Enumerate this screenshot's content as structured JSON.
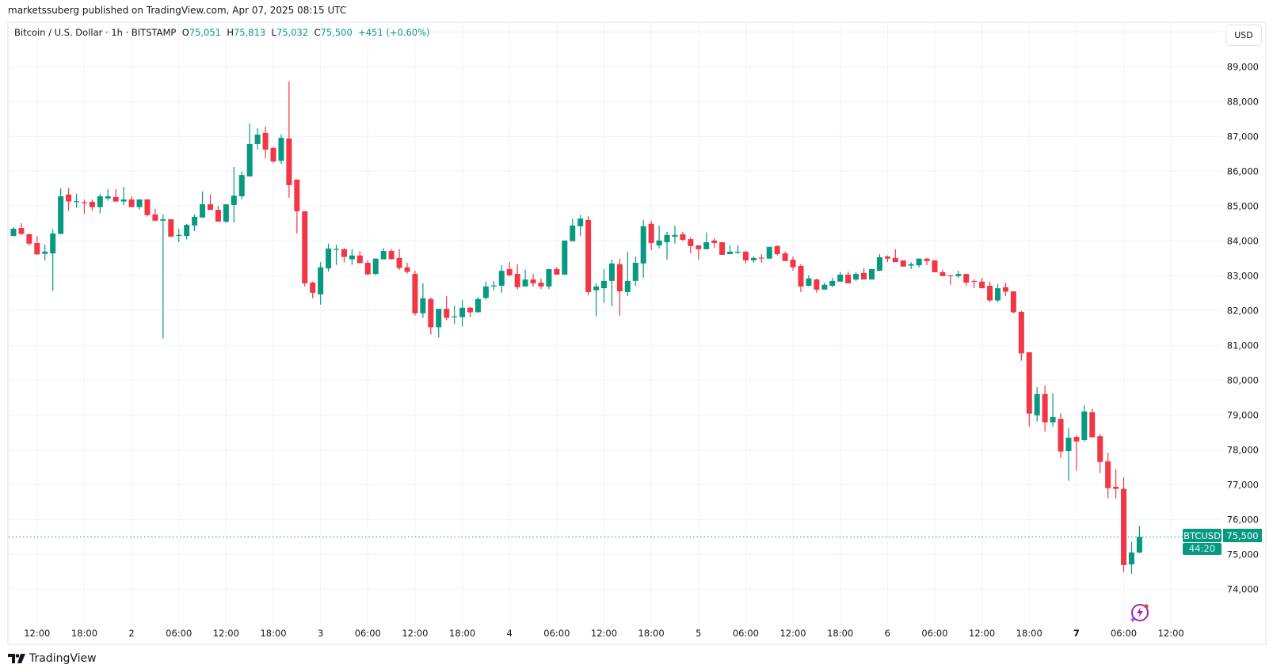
{
  "header": {
    "published": "marketssuberg published on TradingView.com, Apr 07, 2025 08:15 UTC"
  },
  "legend": {
    "symbol": "Bitcoin / U.S. Dollar · 1h · BITSTAMP",
    "o_label": "O",
    "o_value": "75,051",
    "h_label": "H",
    "h_value": "75,813",
    "l_label": "L",
    "l_value": "75,032",
    "c_label": "C",
    "c_value": "75,500",
    "change": "+451 (+0.60%)"
  },
  "currency_button": "USD",
  "price_tag": {
    "symbol": "BTCUSD",
    "price": "75,500",
    "countdown": "44:20"
  },
  "branding": {
    "logo_text": "TradingView"
  },
  "colors": {
    "up": "#089981",
    "down": "#f23645",
    "grid": "#f0f3fa",
    "last_price_line": "#089981"
  },
  "chart_data": {
    "type": "candlestick",
    "title": "Bitcoin / U.S. Dollar · 1h · BITSTAMP",
    "interval": "1h",
    "start": "2025-04-01 09:00",
    "ylim": [
      73500,
      90000
    ],
    "last_price": 75500,
    "grid": true,
    "y_ticks": [
      {
        "value": 74000,
        "label": "74,000"
      },
      {
        "value": 75000,
        "label": "75,000"
      },
      {
        "value": 76000,
        "label": "76,000"
      },
      {
        "value": 77000,
        "label": "77,000"
      },
      {
        "value": 78000,
        "label": "78,000"
      },
      {
        "value": 79000,
        "label": "79,000"
      },
      {
        "value": 80000,
        "label": "80,000"
      },
      {
        "value": 81000,
        "label": "81,000"
      },
      {
        "value": 82000,
        "label": "82,000"
      },
      {
        "value": 83000,
        "label": "83,000"
      },
      {
        "value": 84000,
        "label": "84,000"
      },
      {
        "value": 85000,
        "label": "85,000"
      },
      {
        "value": 86000,
        "label": "86,000"
      },
      {
        "value": 87000,
        "label": "87,000"
      },
      {
        "value": 88000,
        "label": "88,000"
      },
      {
        "value": 89000,
        "label": "89,000"
      }
    ],
    "x_ticks": [
      {
        "candle": 4,
        "label": "12:00"
      },
      {
        "candle": 10,
        "label": "18:00"
      },
      {
        "candle": 16,
        "label": "2",
        "day": true
      },
      {
        "candle": 22,
        "label": "06:00"
      },
      {
        "candle": 28,
        "label": "12:00"
      },
      {
        "candle": 34,
        "label": "18:00"
      },
      {
        "candle": 40,
        "label": "3",
        "day": true
      },
      {
        "candle": 46,
        "label": "06:00"
      },
      {
        "candle": 52,
        "label": "12:00"
      },
      {
        "candle": 58,
        "label": "18:00"
      },
      {
        "candle": 64,
        "label": "4",
        "day": true
      },
      {
        "candle": 70,
        "label": "06:00"
      },
      {
        "candle": 76,
        "label": "12:00"
      },
      {
        "candle": 82,
        "label": "18:00"
      },
      {
        "candle": 88,
        "label": "5",
        "day": true
      },
      {
        "candle": 94,
        "label": "06:00"
      },
      {
        "candle": 100,
        "label": "12:00"
      },
      {
        "candle": 106,
        "label": "18:00"
      },
      {
        "candle": 112,
        "label": "6",
        "day": true
      },
      {
        "candle": 118,
        "label": "06:00"
      },
      {
        "candle": 124,
        "label": "12:00"
      },
      {
        "candle": 130,
        "label": "18:00"
      },
      {
        "candle": 136,
        "label": "7",
        "day": true,
        "bold": true
      },
      {
        "candle": 142,
        "label": "06:00"
      },
      {
        "candle": 148,
        "label": "12:00"
      }
    ],
    "ohlc_fields": [
      "open",
      "high",
      "low",
      "close"
    ],
    "candles": [
      [
        84140,
        84390,
        84130,
        84350
      ],
      [
        84370,
        84510,
        84170,
        84200
      ],
      [
        84190,
        84210,
        83860,
        83920
      ],
      [
        83940,
        84140,
        83610,
        83610
      ],
      [
        83630,
        83890,
        83440,
        83690
      ],
      [
        83640,
        84330,
        82560,
        84210
      ],
      [
        84200,
        85510,
        84190,
        85280
      ],
      [
        85330,
        85510,
        84860,
        85130
      ],
      [
        85140,
        85350,
        84950,
        85140
      ],
      [
        85110,
        85190,
        84770,
        85080
      ],
      [
        85120,
        85190,
        84860,
        84970
      ],
      [
        84970,
        85350,
        84790,
        85280
      ],
      [
        85220,
        85490,
        85150,
        85280
      ],
      [
        85260,
        85490,
        85120,
        85130
      ],
      [
        85130,
        85550,
        85020,
        85190
      ],
      [
        85190,
        85280,
        84970,
        84970
      ],
      [
        84970,
        85190,
        84900,
        85190
      ],
      [
        85190,
        85190,
        84700,
        84740
      ],
      [
        84760,
        84920,
        84560,
        84580
      ],
      [
        84580,
        84760,
        81200,
        84620
      ],
      [
        84620,
        84620,
        84120,
        84120
      ],
      [
        84150,
        84350,
        83960,
        84170
      ],
      [
        84140,
        84490,
        84040,
        84460
      ],
      [
        84440,
        84760,
        84280,
        84690
      ],
      [
        84670,
        85420,
        84670,
        85050
      ],
      [
        85050,
        85330,
        84890,
        84890
      ],
      [
        84890,
        85010,
        84550,
        84550
      ],
      [
        84550,
        85050,
        84520,
        85050
      ],
      [
        85030,
        86120,
        84530,
        85300
      ],
      [
        85280,
        85990,
        85200,
        85890
      ],
      [
        85850,
        87370,
        85850,
        86780
      ],
      [
        86780,
        87240,
        86620,
        87050
      ],
      [
        87100,
        87280,
        86370,
        86620
      ],
      [
        86670,
        86700,
        86240,
        86280
      ],
      [
        86300,
        87050,
        86210,
        86960
      ],
      [
        86940,
        88580,
        85240,
        85600
      ],
      [
        85760,
        85760,
        84210,
        84850
      ],
      [
        84850,
        84850,
        82690,
        82780
      ],
      [
        82800,
        82830,
        82350,
        82510
      ],
      [
        82460,
        83390,
        82170,
        83240
      ],
      [
        83210,
        83920,
        83120,
        83780
      ],
      [
        83750,
        83890,
        83310,
        83770
      ],
      [
        83760,
        83790,
        83380,
        83540
      ],
      [
        83470,
        83760,
        83310,
        83580
      ],
      [
        83580,
        83710,
        83360,
        83360
      ],
      [
        83370,
        83440,
        83020,
        83040
      ],
      [
        83050,
        83500,
        83020,
        83490
      ],
      [
        83470,
        83790,
        83470,
        83710
      ],
      [
        83710,
        83760,
        83470,
        83470
      ],
      [
        83510,
        83760,
        83170,
        83220
      ],
      [
        83240,
        83370,
        83060,
        83110
      ],
      [
        83050,
        83140,
        81860,
        81920
      ],
      [
        81920,
        82780,
        81790,
        82350
      ],
      [
        82330,
        82370,
        81310,
        81520
      ],
      [
        81520,
        82050,
        81220,
        82050
      ],
      [
        82050,
        82420,
        81720,
        81790
      ],
      [
        81820,
        82140,
        81610,
        81830
      ],
      [
        81810,
        82300,
        81540,
        82080
      ],
      [
        82080,
        82100,
        81810,
        81950
      ],
      [
        81950,
        82390,
        81940,
        82330
      ],
      [
        82360,
        82830,
        82310,
        82690
      ],
      [
        82710,
        82850,
        82580,
        82720
      ],
      [
        82710,
        83300,
        82510,
        83140
      ],
      [
        83190,
        83390,
        82990,
        83010
      ],
      [
        83050,
        83330,
        82600,
        82670
      ],
      [
        82690,
        83170,
        82690,
        82890
      ],
      [
        82890,
        83050,
        82690,
        82780
      ],
      [
        82800,
        82920,
        82620,
        82690
      ],
      [
        82690,
        83190,
        82620,
        83190
      ],
      [
        83190,
        83240,
        83030,
        83030
      ],
      [
        83030,
        84010,
        83030,
        84010
      ],
      [
        83990,
        84640,
        83990,
        84440
      ],
      [
        84420,
        84740,
        84140,
        84640
      ],
      [
        84600,
        84710,
        82440,
        82530
      ],
      [
        82580,
        82780,
        81830,
        82690
      ],
      [
        82640,
        83190,
        82210,
        82850
      ],
      [
        82850,
        83460,
        82120,
        83350
      ],
      [
        83330,
        83490,
        81850,
        82550
      ],
      [
        82530,
        83690,
        82420,
        82850
      ],
      [
        82850,
        83550,
        82710,
        83370
      ],
      [
        83350,
        84600,
        82940,
        84420
      ],
      [
        84490,
        84580,
        83740,
        83940
      ],
      [
        83870,
        84440,
        83780,
        84010
      ],
      [
        83960,
        84260,
        83460,
        84170
      ],
      [
        84120,
        84440,
        83920,
        84170
      ],
      [
        84190,
        84260,
        83990,
        84030
      ],
      [
        84050,
        84100,
        83640,
        83850
      ],
      [
        83870,
        83870,
        83460,
        83760
      ],
      [
        83760,
        84240,
        83760,
        83960
      ],
      [
        84010,
        84080,
        83800,
        83940
      ],
      [
        83960,
        83960,
        83600,
        83600
      ],
      [
        83620,
        83870,
        83620,
        83690
      ],
      [
        83670,
        83870,
        83620,
        83690
      ],
      [
        83690,
        83710,
        83350,
        83440
      ],
      [
        83440,
        83550,
        83370,
        83510
      ],
      [
        83520,
        83620,
        83370,
        83510
      ],
      [
        83490,
        83830,
        83490,
        83830
      ],
      [
        83850,
        83870,
        83580,
        83620
      ],
      [
        83640,
        83690,
        83420,
        83420
      ],
      [
        83460,
        83550,
        83140,
        83240
      ],
      [
        83280,
        83330,
        82530,
        82690
      ],
      [
        82710,
        83010,
        82690,
        82920
      ],
      [
        82890,
        82920,
        82510,
        82600
      ],
      [
        82600,
        82800,
        82600,
        82740
      ],
      [
        82710,
        82940,
        82670,
        82850
      ],
      [
        82830,
        83100,
        82830,
        83030
      ],
      [
        83030,
        83120,
        82780,
        82780
      ],
      [
        82890,
        83100,
        82850,
        83050
      ],
      [
        83080,
        83210,
        82890,
        82890
      ],
      [
        82890,
        83190,
        82890,
        83190
      ],
      [
        83140,
        83620,
        83140,
        83530
      ],
      [
        83550,
        83580,
        83390,
        83490
      ],
      [
        83510,
        83760,
        83390,
        83390
      ],
      [
        83440,
        83440,
        83260,
        83260
      ],
      [
        83290,
        83390,
        83190,
        83330
      ],
      [
        83300,
        83490,
        83240,
        83490
      ],
      [
        83490,
        83510,
        83300,
        83420
      ],
      [
        83440,
        83440,
        83100,
        83100
      ],
      [
        83100,
        83170,
        82990,
        82990
      ],
      [
        83010,
        83010,
        82740,
        82990
      ],
      [
        82990,
        83140,
        82940,
        83050
      ],
      [
        83050,
        83050,
        82710,
        82800
      ],
      [
        82850,
        82890,
        82640,
        82830
      ],
      [
        82830,
        82940,
        82640,
        82640
      ],
      [
        82710,
        82830,
        82240,
        82290
      ],
      [
        82290,
        82760,
        82240,
        82640
      ],
      [
        82670,
        82800,
        82420,
        82540
      ],
      [
        82550,
        82550,
        81920,
        81950
      ],
      [
        81960,
        81990,
        80560,
        80770
      ],
      [
        80800,
        80800,
        78670,
        79040
      ],
      [
        78990,
        79800,
        78810,
        79600
      ],
      [
        79600,
        79850,
        78520,
        78790
      ],
      [
        78790,
        79620,
        78670,
        78940
      ],
      [
        78890,
        79050,
        77770,
        77950
      ],
      [
        77960,
        78620,
        77110,
        78350
      ],
      [
        78370,
        78420,
        77400,
        78240
      ],
      [
        78280,
        79280,
        78240,
        79100
      ],
      [
        79080,
        79170,
        78360,
        78360
      ],
      [
        78390,
        78460,
        77330,
        77650
      ],
      [
        77670,
        77920,
        76610,
        76900
      ],
      [
        76940,
        77440,
        76610,
        76880
      ],
      [
        76880,
        77210,
        74490,
        74690
      ],
      [
        74710,
        75360,
        74440,
        75050
      ],
      [
        75051,
        75813,
        75032,
        75500
      ]
    ]
  }
}
